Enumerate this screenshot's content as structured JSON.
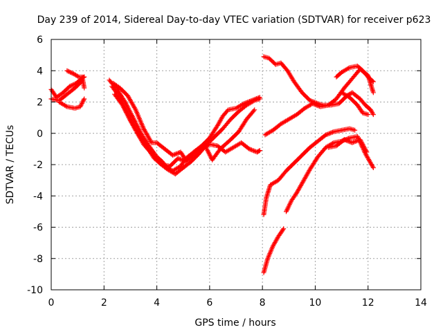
{
  "chart_data": {
    "type": "scatter",
    "title": "Day 239 of 2014, Sidereal Day-to-day VTEC variation (SDTVAR) for receiver p623",
    "xlabel": "GPS time / hours",
    "ylabel": "SDTVAR / TECUs",
    "xlim": [
      0,
      14
    ],
    "ylim": [
      -10,
      6
    ],
    "xticks": [
      "0",
      "2",
      "4",
      "6",
      "8",
      "10",
      "12",
      "14"
    ],
    "yticks": [
      "-10",
      "-8",
      "-6",
      "-4",
      "-2",
      "0",
      "2",
      "4",
      "6"
    ],
    "grid": true,
    "legend": "none",
    "marker": "+",
    "color": "#ff0000",
    "series": [
      {
        "x": [
          0.0,
          0.2,
          0.45,
          0.7,
          0.95,
          1.15,
          1.25
        ],
        "y": [
          2.8,
          2.3,
          2.6,
          3.0,
          3.2,
          3.5,
          3.6
        ]
      },
      {
        "x": [
          0.0,
          0.3,
          0.6,
          0.9,
          1.2,
          1.25
        ],
        "y": [
          2.2,
          2.1,
          2.5,
          2.9,
          3.4,
          2.9
        ]
      },
      {
        "x": [
          0.6,
          0.85,
          1.05,
          1.25
        ],
        "y": [
          4.0,
          3.8,
          3.6,
          3.6
        ]
      },
      {
        "x": [
          0.3,
          0.6,
          0.9,
          1.1,
          1.25
        ],
        "y": [
          2.0,
          1.7,
          1.6,
          1.7,
          2.2
        ]
      },
      {
        "x": [
          2.2,
          2.5,
          2.8,
          3.1,
          3.4,
          3.7,
          4.0,
          4.2,
          4.4,
          4.6,
          4.9,
          5.1,
          5.4,
          5.7,
          6.0,
          6.3,
          6.5,
          6.7,
          7.0,
          7.3,
          7.6,
          7.9
        ],
        "y": [
          3.4,
          2.8,
          2.0,
          1.0,
          0.0,
          -0.8,
          -1.5,
          -1.8,
          -2.2,
          -2.4,
          -2.1,
          -1.6,
          -1.2,
          -0.8,
          -0.3,
          0.5,
          1.1,
          1.5,
          1.6,
          1.9,
          2.1,
          2.3
        ]
      },
      {
        "x": [
          2.3,
          2.6,
          2.9,
          3.2,
          3.5,
          3.8,
          4.1,
          4.4,
          4.7,
          5.0,
          5.3,
          5.6,
          5.9,
          6.2,
          6.5,
          6.8,
          7.1,
          7.4,
          7.7,
          7.9
        ],
        "y": [
          3.0,
          2.3,
          1.2,
          0.2,
          -0.7,
          -1.3,
          -1.9,
          -2.3,
          -2.6,
          -2.2,
          -1.8,
          -1.3,
          -0.7,
          -0.2,
          0.3,
          0.9,
          1.4,
          1.8,
          2.1,
          2.2
        ]
      },
      {
        "x": [
          2.35,
          2.6,
          2.9,
          3.2,
          3.5,
          3.8,
          4.0,
          4.3,
          4.6,
          4.9,
          5.1,
          5.4,
          5.7,
          6.0,
          6.3,
          6.6,
          6.9,
          7.2,
          7.5,
          7.8,
          7.9
        ],
        "y": [
          3.2,
          2.9,
          2.4,
          1.5,
          0.3,
          -0.6,
          -0.6,
          -1.0,
          -1.4,
          -1.2,
          -1.7,
          -1.5,
          -1.0,
          -0.7,
          -0.8,
          -1.2,
          -0.9,
          -0.6,
          -1.0,
          -1.2,
          -1.1
        ]
      },
      {
        "x": [
          2.4,
          2.7,
          3.0,
          3.3,
          3.6,
          3.9,
          4.2,
          4.5,
          4.8,
          5.1,
          5.4,
          5.8,
          6.1,
          6.4,
          6.8,
          7.1,
          7.4,
          7.7
        ],
        "y": [
          2.5,
          1.8,
          0.8,
          -0.1,
          -0.8,
          -1.6,
          -2.0,
          -2.1,
          -1.6,
          -1.8,
          -1.2,
          -0.7,
          -1.7,
          -1.0,
          -0.4,
          0.1,
          0.9,
          1.5
        ]
      },
      {
        "x": [
          8.05,
          8.25,
          8.5,
          8.7,
          8.95,
          9.2,
          9.5,
          9.8,
          10.1,
          10.3,
          10.6,
          10.9,
          11.2,
          11.4,
          11.7,
          11.9,
          12.1,
          12.2
        ],
        "y": [
          4.9,
          4.8,
          4.4,
          4.5,
          4.0,
          3.3,
          2.6,
          2.1,
          1.9,
          1.8,
          1.8,
          1.9,
          2.4,
          2.6,
          2.2,
          1.8,
          1.5,
          1.2
        ]
      },
      {
        "x": [
          8.1,
          8.4,
          8.7,
          9.0,
          9.3,
          9.6,
          9.9,
          10.2,
          10.5,
          10.8,
          11.1,
          11.4,
          11.7,
          12.0,
          12.2
        ],
        "y": [
          -0.1,
          0.2,
          0.6,
          0.9,
          1.2,
          1.6,
          1.9,
          1.7,
          1.8,
          2.2,
          2.9,
          3.5,
          4.1,
          3.7,
          2.6
        ]
      },
      {
        "x": [
          10.8,
          11.0,
          11.3,
          11.6,
          11.8,
          12.0,
          12.2
        ],
        "y": [
          3.6,
          3.9,
          4.2,
          4.3,
          4.0,
          3.6,
          3.3
        ]
      },
      {
        "x": [
          11.0,
          11.3,
          11.6,
          11.8,
          12.0
        ],
        "y": [
          2.6,
          2.3,
          1.8,
          1.3,
          1.2
        ]
      },
      {
        "x": [
          8.05,
          8.15,
          8.3,
          8.6,
          8.9,
          9.2,
          9.5,
          9.8,
          10.1,
          10.4,
          10.7,
          11.0,
          11.3,
          11.5
        ],
        "y": [
          -5.2,
          -4.1,
          -3.3,
          -3.0,
          -2.4,
          -1.9,
          -1.4,
          -0.9,
          -0.5,
          -0.1,
          0.1,
          0.2,
          0.3,
          0.2
        ]
      },
      {
        "x": [
          8.05,
          8.2,
          8.4,
          8.6,
          8.8
        ],
        "y": [
          -8.9,
          -8.0,
          -7.2,
          -6.6,
          -6.1
        ]
      },
      {
        "x": [
          8.9,
          9.1,
          9.3,
          9.5,
          9.8,
          10.1,
          10.4,
          10.7,
          11.0,
          11.3,
          11.6,
          11.9,
          12.2
        ],
        "y": [
          -5.0,
          -4.3,
          -3.8,
          -3.2,
          -2.3,
          -1.5,
          -0.9,
          -0.6,
          -0.5,
          -0.3,
          -0.2,
          -1.3,
          -2.2
        ]
      },
      {
        "x": [
          10.5,
          10.8,
          11.1,
          11.4,
          11.7,
          11.95
        ],
        "y": [
          -0.9,
          -0.8,
          -0.4,
          -0.6,
          -0.4,
          -1.2
        ]
      }
    ]
  }
}
